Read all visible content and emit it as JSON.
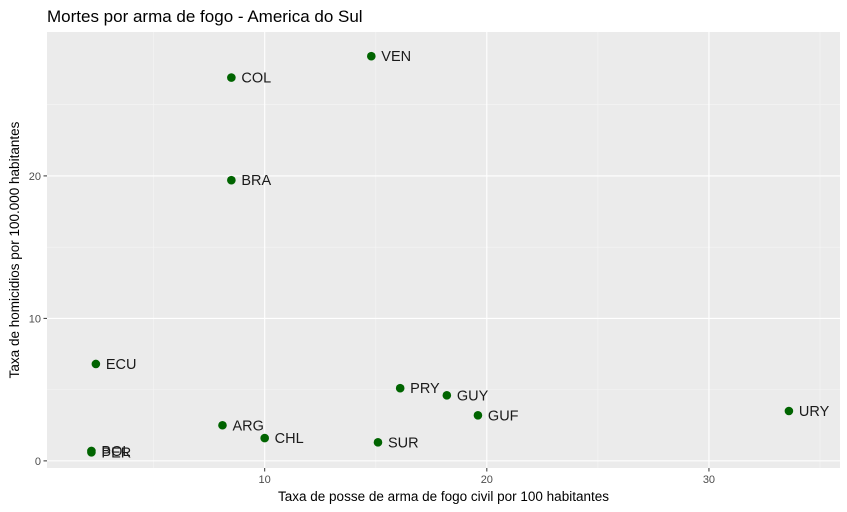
{
  "chart_data": {
    "type": "scatter",
    "title": "Mortes por arma de fogo - America do Sul",
    "xlabel": "Taxa de posse de arma de fogo civil por 100 habitantes",
    "ylabel": "Taxa de homicidios por 100.000 habitantes",
    "xlim": [
      0.2,
      35.9
    ],
    "ylim": [
      -0.5,
      30.1
    ],
    "x_ticks": [
      10,
      20,
      30
    ],
    "x_tick_labels": [
      "10",
      "20",
      "30"
    ],
    "y_ticks": [
      0,
      10,
      20
    ],
    "y_tick_labels": [
      "0",
      "10",
      "20"
    ],
    "x_minor_ticks": [
      5,
      15,
      25,
      35
    ],
    "y_minor_ticks": [
      5,
      15,
      25
    ],
    "grid": true,
    "point_color": "#006400",
    "panel_background": "#ebebeb",
    "points": [
      {
        "label": "VEN",
        "x": 14.8,
        "y": 28.4
      },
      {
        "label": "COL",
        "x": 8.5,
        "y": 26.9
      },
      {
        "label": "BRA",
        "x": 8.5,
        "y": 19.7
      },
      {
        "label": "ECU",
        "x": 2.4,
        "y": 6.8
      },
      {
        "label": "PRY",
        "x": 16.1,
        "y": 5.1
      },
      {
        "label": "GUY",
        "x": 18.2,
        "y": 4.6
      },
      {
        "label": "GUF",
        "x": 19.6,
        "y": 3.2
      },
      {
        "label": "URY",
        "x": 33.6,
        "y": 3.5
      },
      {
        "label": "ARG",
        "x": 8.1,
        "y": 2.5
      },
      {
        "label": "CHL",
        "x": 10.0,
        "y": 1.6
      },
      {
        "label": "SUR",
        "x": 15.1,
        "y": 1.3
      },
      {
        "label": "BOL",
        "x": 2.2,
        "y": 0.7
      },
      {
        "label": "PER",
        "x": 2.2,
        "y": 0.6
      }
    ]
  }
}
